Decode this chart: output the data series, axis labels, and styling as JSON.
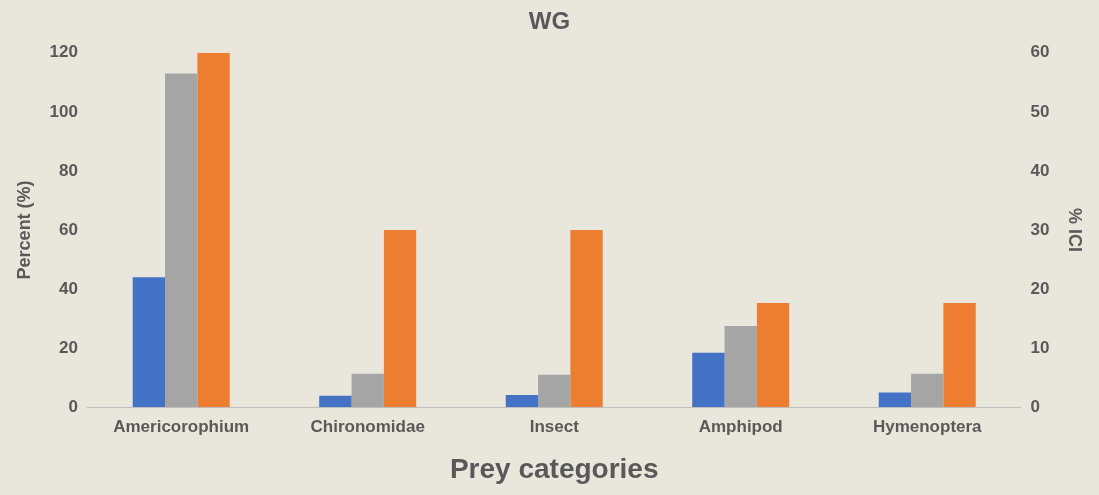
{
  "chart_data": {
    "type": "bar",
    "title": "WG",
    "xlabel": "Prey categories",
    "ylabel": "Percent (%)",
    "y2label": "% ICI",
    "categories": [
      "Americorophium",
      "Chironomidae",
      "Insect",
      "Amphipod",
      "Hymenoptera"
    ],
    "series": [
      {
        "color": "#4472c4",
        "values": [
          44,
          3.8,
          4.1,
          18.4,
          4.9
        ]
      },
      {
        "color": "#a5a5a5",
        "values": [
          113,
          11.3,
          10.9,
          27.4,
          11.3
        ]
      },
      {
        "color": "#ed7d31",
        "axis": "y2",
        "values": [
          60,
          30,
          30,
          17.6,
          17.6
        ]
      }
    ],
    "ylim": [
      0,
      120
    ],
    "yticks": [
      0,
      20,
      40,
      60,
      80,
      100,
      120
    ],
    "y2lim": [
      0,
      60
    ],
    "y2ticks": [
      0,
      10,
      20,
      30,
      40,
      50,
      60
    ],
    "grid": false,
    "legend": false
  }
}
